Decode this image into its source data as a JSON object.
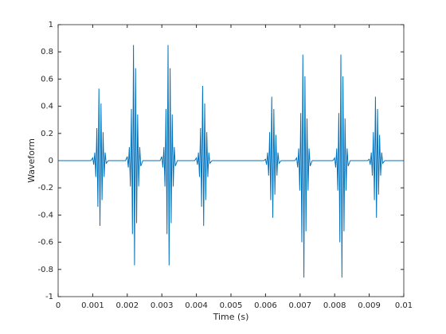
{
  "chart_data": {
    "type": "line",
    "xlabel": "Time (s)",
    "ylabel": "Waveform",
    "xlim": [
      0,
      0.01
    ],
    "ylim": [
      -1,
      1
    ],
    "xticks": [
      0,
      0.001,
      0.002,
      0.003,
      0.004,
      0.005,
      0.006,
      0.007,
      0.008,
      0.009,
      0.01
    ],
    "yticks": [
      -1,
      -0.8,
      -0.6,
      -0.4,
      -0.2,
      0,
      0.2,
      0.4,
      0.6,
      0.8,
      1
    ],
    "grid": false,
    "series": [
      {
        "color": "#0072bd",
        "x": [
          0,
          0.00095,
          0.001,
          0.00103,
          0.00106,
          0.00109,
          0.00112,
          0.00115,
          0.00118,
          0.00121,
          0.00124,
          0.00127,
          0.0013,
          0.00133,
          0.00136,
          0.00139,
          0.00145,
          0.00195,
          0.002,
          0.00203,
          0.00206,
          0.00209,
          0.00212,
          0.00215,
          0.00218,
          0.00221,
          0.00224,
          0.00227,
          0.0023,
          0.00233,
          0.00236,
          0.00239,
          0.00245,
          0.00295,
          0.003,
          0.00303,
          0.00306,
          0.00309,
          0.00312,
          0.00315,
          0.00318,
          0.00321,
          0.00324,
          0.00327,
          0.0033,
          0.00333,
          0.00336,
          0.00339,
          0.00345,
          0.00395,
          0.004,
          0.00403,
          0.00406,
          0.00409,
          0.00412,
          0.00415,
          0.00418,
          0.00421,
          0.00424,
          0.00427,
          0.0043,
          0.00433,
          0.00436,
          0.00439,
          0.00445,
          0.00595,
          0.006,
          0.00603,
          0.00606,
          0.00609,
          0.00612,
          0.00615,
          0.00618,
          0.00621,
          0.00624,
          0.00627,
          0.0063,
          0.00633,
          0.00636,
          0.00639,
          0.00645,
          0.00685,
          0.0069,
          0.00693,
          0.00696,
          0.00699,
          0.00702,
          0.00705,
          0.00708,
          0.00711,
          0.00714,
          0.00717,
          0.0072,
          0.00723,
          0.00726,
          0.00729,
          0.00735,
          0.00795,
          0.008,
          0.00803,
          0.00806,
          0.00809,
          0.00812,
          0.00815,
          0.00818,
          0.00821,
          0.00824,
          0.00827,
          0.0083,
          0.00833,
          0.00836,
          0.00839,
          0.00845,
          0.00895,
          0.009,
          0.00903,
          0.00906,
          0.00909,
          0.00912,
          0.00915,
          0.00918,
          0.00921,
          0.00924,
          0.00927,
          0.0093,
          0.00933,
          0.00936,
          0.00939,
          0.00945,
          0.01
        ],
        "values": [
          0,
          0,
          0.02,
          -0.03,
          0.06,
          -0.12,
          0.24,
          -0.34,
          0.53,
          -0.48,
          0.42,
          -0.29,
          0.21,
          -0.12,
          0.06,
          -0.02,
          0,
          0,
          0.03,
          -0.05,
          0.1,
          -0.19,
          0.38,
          -0.54,
          0.85,
          -0.77,
          0.68,
          -0.46,
          0.34,
          -0.19,
          0.1,
          -0.04,
          0,
          0,
          0.03,
          -0.05,
          0.1,
          -0.19,
          0.38,
          -0.54,
          0.85,
          -0.77,
          0.68,
          -0.46,
          0.34,
          -0.19,
          0.1,
          -0.04,
          0,
          0,
          0.02,
          -0.03,
          0.06,
          -0.12,
          0.24,
          -0.34,
          0.55,
          -0.48,
          0.42,
          -0.29,
          0.21,
          -0.12,
          0.06,
          -0.02,
          0,
          0,
          0.01,
          -0.03,
          0.06,
          -0.11,
          0.21,
          -0.29,
          0.47,
          -0.42,
          0.38,
          -0.25,
          0.19,
          -0.11,
          0.06,
          -0.02,
          0,
          0,
          0.02,
          -0.05,
          0.09,
          -0.22,
          0.35,
          -0.6,
          0.78,
          -0.86,
          0.62,
          -0.52,
          0.31,
          -0.22,
          0.09,
          -0.04,
          0,
          0,
          0.02,
          -0.05,
          0.09,
          -0.22,
          0.35,
          -0.6,
          0.78,
          -0.86,
          0.62,
          -0.52,
          0.31,
          -0.22,
          0.09,
          -0.04,
          0,
          0,
          0.01,
          -0.03,
          0.06,
          -0.11,
          0.21,
          -0.29,
          0.47,
          -0.42,
          0.38,
          -0.25,
          0.19,
          -0.11,
          0.06,
          -0.02,
          0,
          0
        ]
      }
    ]
  }
}
